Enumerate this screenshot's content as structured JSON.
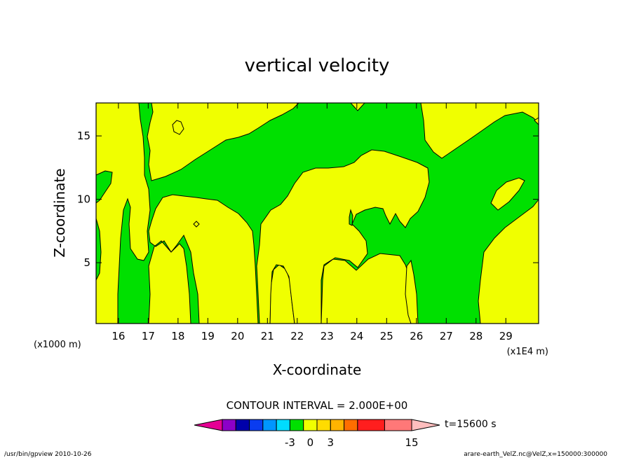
{
  "colors": {
    "positive_fill": "#f0ff00",
    "negative_fill": "#00e000",
    "outline": "#000000",
    "background": "#ffffff"
  },
  "chart_data": {
    "type": "heatmap",
    "title": "vertical velocity",
    "xlabel": "X-coordinate",
    "ylabel": "Z-coordinate",
    "x_scale_note": "(x1E4 m)",
    "y_scale_note": "(x1000 m)",
    "xlim": [
      15.25,
      30.1
    ],
    "ylim": [
      0.2,
      17.6
    ],
    "x_ticks": [
      16,
      17,
      18,
      19,
      20,
      21,
      22,
      23,
      24,
      25,
      26,
      27,
      28,
      29
    ],
    "y_ticks": [
      5,
      10,
      15
    ],
    "contour_interval_label": "CONTOUR INTERVAL = 2.000E+00",
    "time_label": "t=15600 s",
    "colorbar": {
      "tick_labels": [
        "-3",
        "0",
        "3",
        "15"
      ],
      "tick_values": [
        -3,
        0,
        3,
        15
      ],
      "bins": [
        {
          "range": [
            -15,
            -13
          ],
          "color": "#e60094"
        },
        {
          "range": [
            -13,
            -11
          ],
          "color": "#8c00c8"
        },
        {
          "range": [
            -11,
            -9
          ],
          "color": "#0000aa"
        },
        {
          "range": [
            -9,
            -7
          ],
          "color": "#0a3cf0"
        },
        {
          "range": [
            -7,
            -5
          ],
          "color": "#0096ff"
        },
        {
          "range": [
            -5,
            -3
          ],
          "color": "#00dcff"
        },
        {
          "range": [
            -3,
            -1
          ],
          "color": "#00e000"
        },
        {
          "range": [
            -1,
            1
          ],
          "color": "#f0ff00"
        },
        {
          "range": [
            1,
            3
          ],
          "color": "#ffdc00"
        },
        {
          "range": [
            3,
            5
          ],
          "color": "#ffb400"
        },
        {
          "range": [
            5,
            7
          ],
          "color": "#ff6e00"
        },
        {
          "range": [
            7,
            11
          ],
          "color": "#ff1e1e"
        },
        {
          "range": [
            11,
            15
          ],
          "color": "#ff7878"
        },
        {
          "range": [
            15,
            17
          ],
          "color": "#ffbebe"
        }
      ]
    },
    "regions_note": "Field dominated by values in [-3,-1] (green) and [-1,1] (yellow)"
  },
  "footer": {
    "left": "/usr/bin/gpview   2010-10-26",
    "right": "arare-earth_VelZ.nc@VelZ,x=150000:300000"
  }
}
